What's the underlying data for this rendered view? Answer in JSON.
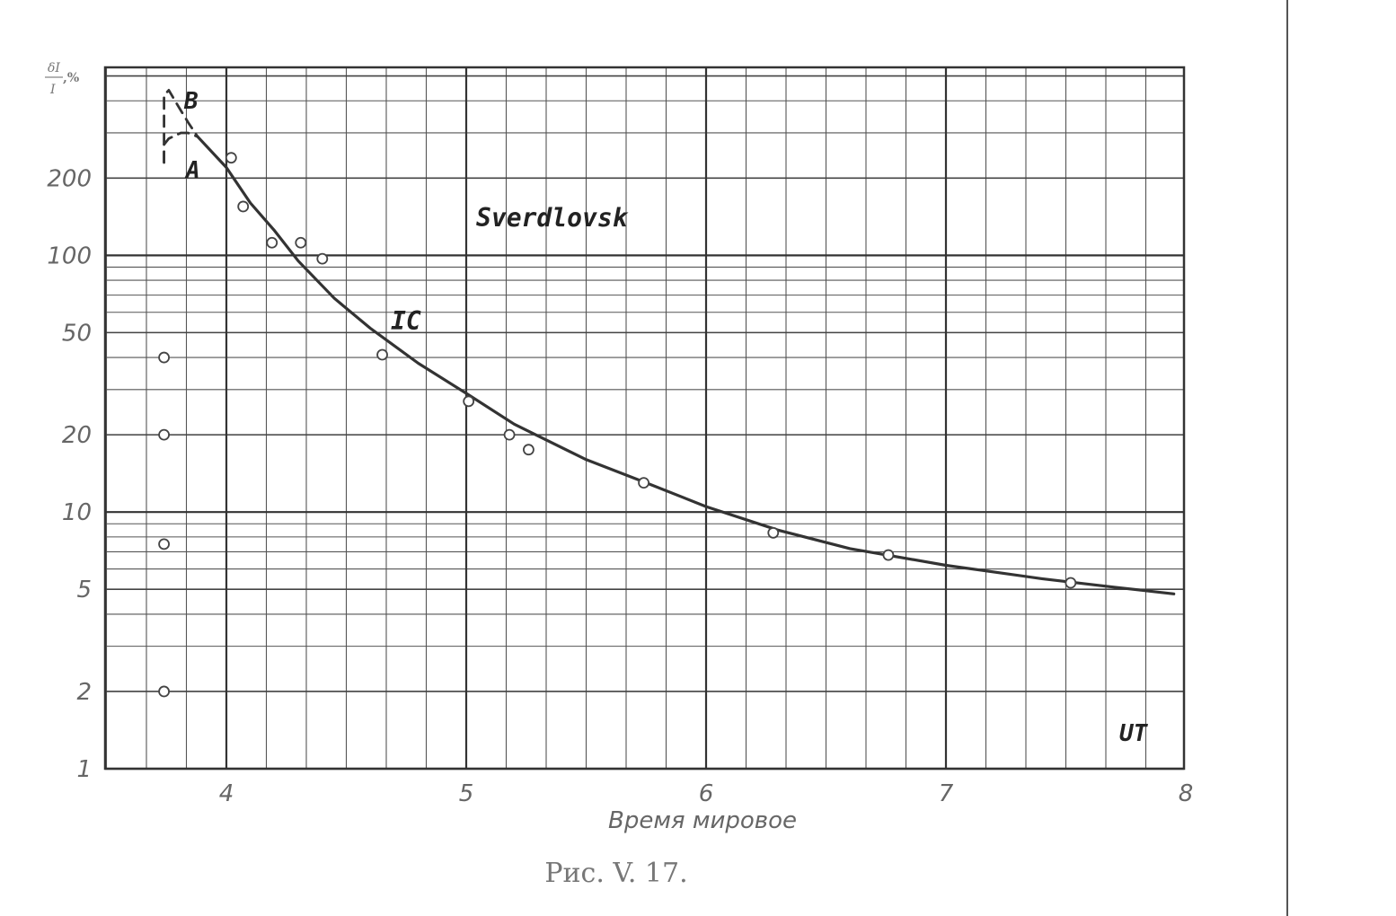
{
  "chart_data": {
    "type": "scatter",
    "title": "Sverdlovsk",
    "caption": "Рис. V. 17.",
    "xlabel": "Время мировое",
    "ylabel": "δI/I,%",
    "ylabel_num": "δI",
    "ylabel_den": "I",
    "ylabel_unit": ",%",
    "x_unit_label": "UT",
    "y_scale": "log",
    "xlim": [
      3.5,
      8
    ],
    "ylim": [
      1,
      540
    ],
    "grid": true,
    "x_ticks": [
      "4",
      "5",
      "6",
      "7",
      "8"
    ],
    "y_ticks": [
      "1",
      "2",
      "5",
      "10",
      "20",
      "50",
      "100",
      "200"
    ],
    "series": [
      {
        "name": "IC",
        "kind": "line",
        "x": [
          3.88,
          4.0,
          4.1,
          4.2,
          4.3,
          4.45,
          4.6,
          4.8,
          5.0,
          5.2,
          5.5,
          5.75,
          6.0,
          6.3,
          6.6,
          7.0,
          7.4,
          7.7,
          7.95
        ],
        "y": [
          290,
          220,
          160,
          125,
          95,
          68,
          52,
          38,
          29,
          22,
          16,
          13,
          10.5,
          8.5,
          7.2,
          6.2,
          5.5,
          5.1,
          4.8
        ]
      },
      {
        "name": "B",
        "kind": "dashed",
        "x": [
          3.74,
          3.74,
          3.76,
          3.8,
          3.84,
          3.88
        ],
        "y": [
          230,
          420,
          440,
          380,
          330,
          290
        ]
      },
      {
        "name": "A",
        "kind": "dashed",
        "x": [
          3.74,
          3.74,
          3.76,
          3.81,
          3.84,
          3.88
        ],
        "y": [
          230,
          270,
          285,
          300,
          300,
          290
        ]
      },
      {
        "name": "",
        "kind": "points",
        "x": [
          3.74,
          3.74,
          3.74,
          3.74,
          4.02,
          4.07,
          4.19,
          4.31,
          4.4,
          4.65,
          5.01,
          5.18,
          5.26,
          5.74,
          6.28,
          6.76,
          7.52
        ],
        "y": [
          2,
          7.5,
          20,
          40,
          240,
          155,
          112,
          112,
          97,
          41,
          27,
          20,
          17.5,
          13,
          8.3,
          6.8,
          5.3
        ]
      }
    ]
  }
}
